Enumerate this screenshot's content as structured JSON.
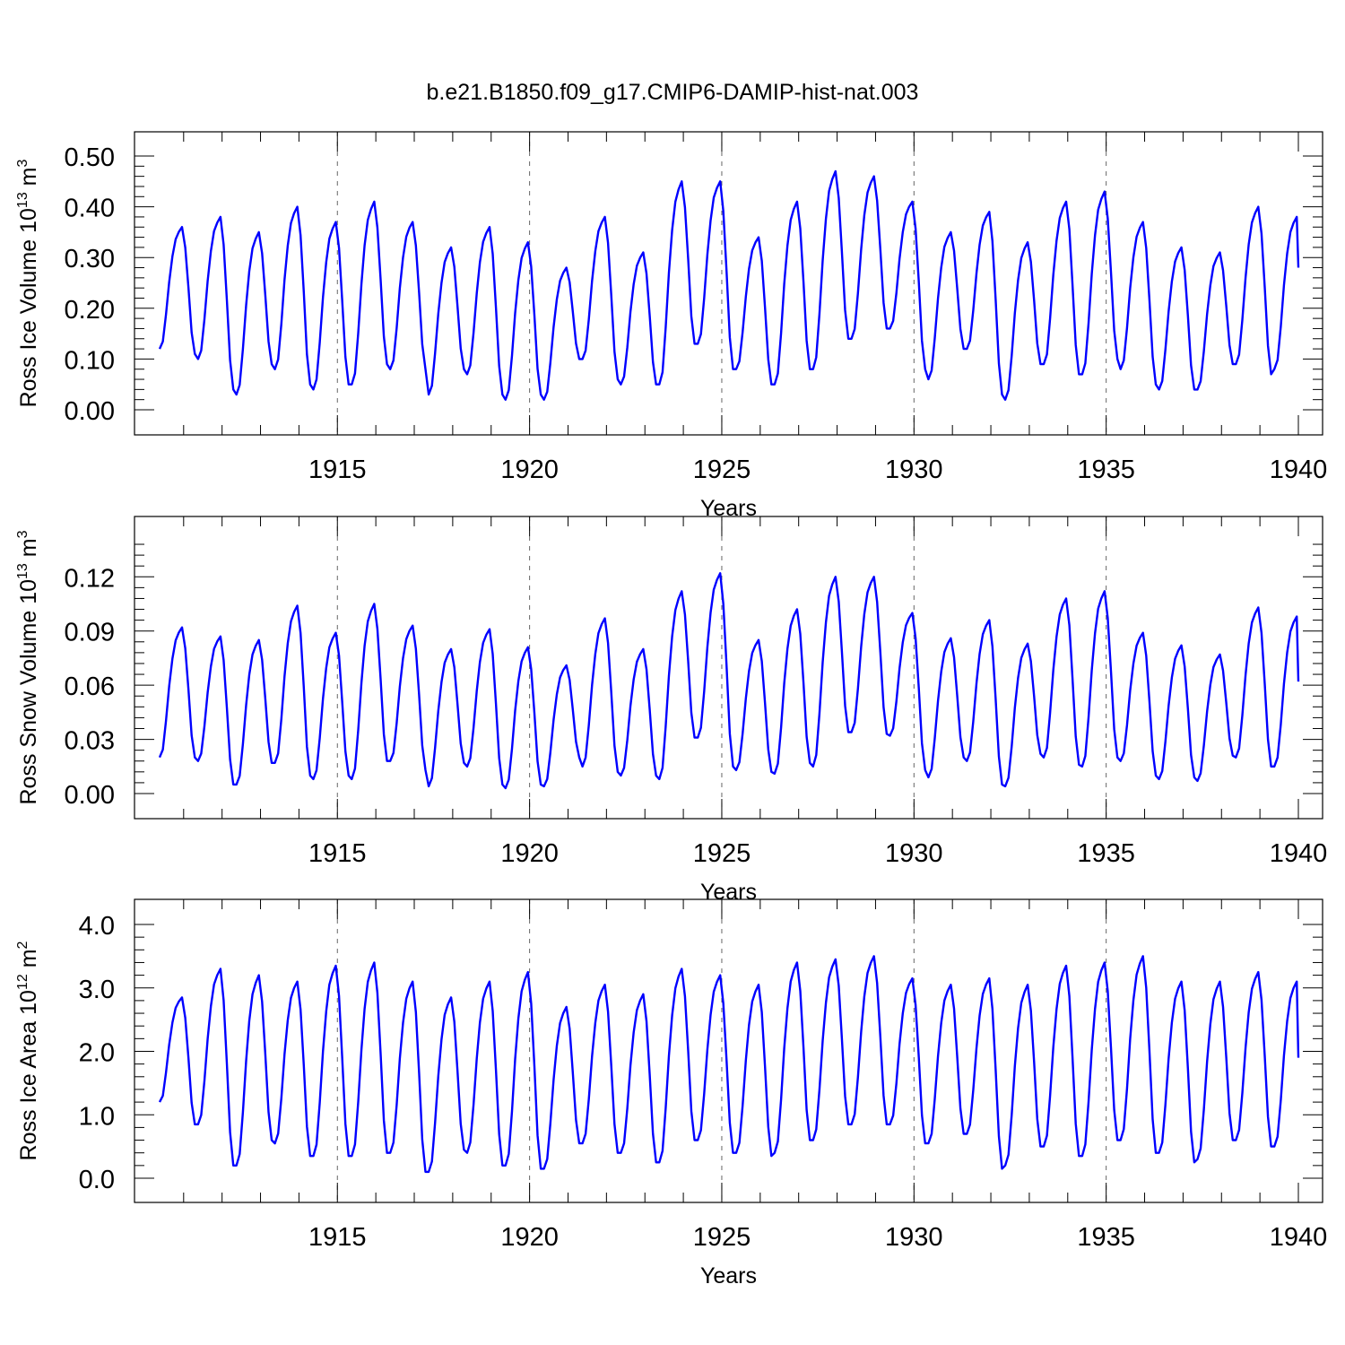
{
  "chart_data": {
    "title": "b.e21.B1850.f09_g17.CMIP6-DAMIP-hist-nat.003",
    "xlim": [
      1910.375,
      1940
    ],
    "xticks": [
      1915,
      1920,
      1925,
      1930,
      1935,
      1940
    ],
    "xlabel": "Years",
    "series_color": "#0000ff",
    "panels": [
      {
        "type": "line",
        "id": "ice-volume",
        "ylabel_main": "Ross Ice Volume 10",
        "ylabel_exp": "13",
        "ylabel_unit": " m",
        "ylabel_unit_exp": "3",
        "ylim": [
          0,
          0.5
        ],
        "yticks": [
          0.0,
          0.1,
          0.2,
          0.3,
          0.4,
          0.5
        ],
        "yticklabels": [
          "0.00",
          "0.10",
          "0.20",
          "0.30",
          "0.40",
          "0.50"
        ],
        "annual": [
          [
            0.12,
            0.36,
            0.11
          ],
          [
            0.1,
            0.38,
            0.04
          ],
          [
            0.03,
            0.35,
            0.09
          ],
          [
            0.08,
            0.4,
            0.05
          ],
          [
            0.04,
            0.37,
            0.05
          ],
          [
            0.05,
            0.41,
            0.09
          ],
          [
            0.08,
            0.37,
            0.08
          ],
          [
            0.03,
            0.32,
            0.08
          ],
          [
            0.07,
            0.36,
            0.03
          ],
          [
            0.02,
            0.33,
            0.03
          ],
          [
            0.02,
            0.28,
            0.1
          ],
          [
            0.1,
            0.38,
            0.06
          ],
          [
            0.05,
            0.31,
            0.05
          ],
          [
            0.05,
            0.45,
            0.13
          ],
          [
            0.13,
            0.45,
            0.08
          ],
          [
            0.08,
            0.34,
            0.05
          ],
          [
            0.05,
            0.41,
            0.08
          ],
          [
            0.08,
            0.47,
            0.14
          ],
          [
            0.14,
            0.46,
            0.16
          ],
          [
            0.16,
            0.41,
            0.08
          ],
          [
            0.06,
            0.35,
            0.12
          ],
          [
            0.12,
            0.39,
            0.03
          ],
          [
            0.02,
            0.33,
            0.09
          ],
          [
            0.09,
            0.41,
            0.07
          ],
          [
            0.07,
            0.43,
            0.1
          ],
          [
            0.08,
            0.37,
            0.05
          ],
          [
            0.04,
            0.32,
            0.04
          ],
          [
            0.04,
            0.31,
            0.09
          ],
          [
            0.09,
            0.4,
            0.07
          ],
          [
            0.08,
            0.38,
            0.28
          ]
        ]
      },
      {
        "type": "line",
        "id": "snow-volume",
        "ylabel_main": "Ross Snow Volume 10",
        "ylabel_exp": "13",
        "ylabel_unit": " m",
        "ylabel_unit_exp": "3",
        "ylim": [
          0,
          0.14
        ],
        "yticks": [
          0.0,
          0.03,
          0.06,
          0.09,
          0.12
        ],
        "yticklabels": [
          "0.00",
          "0.03",
          "0.06",
          "0.09",
          "0.12"
        ],
        "annual": [
          [
            0.02,
            0.092,
            0.02
          ],
          [
            0.018,
            0.087,
            0.005
          ],
          [
            0.005,
            0.085,
            0.017
          ],
          [
            0.017,
            0.104,
            0.01
          ],
          [
            0.008,
            0.089,
            0.01
          ],
          [
            0.008,
            0.105,
            0.018
          ],
          [
            0.018,
            0.093,
            0.013
          ],
          [
            0.004,
            0.08,
            0.017
          ],
          [
            0.015,
            0.091,
            0.005
          ],
          [
            0.003,
            0.081,
            0.005
          ],
          [
            0.004,
            0.071,
            0.02
          ],
          [
            0.015,
            0.097,
            0.012
          ],
          [
            0.01,
            0.08,
            0.01
          ],
          [
            0.008,
            0.112,
            0.031
          ],
          [
            0.031,
            0.122,
            0.015
          ],
          [
            0.013,
            0.085,
            0.012
          ],
          [
            0.011,
            0.102,
            0.017
          ],
          [
            0.015,
            0.12,
            0.034
          ],
          [
            0.034,
            0.12,
            0.033
          ],
          [
            0.032,
            0.1,
            0.013
          ],
          [
            0.009,
            0.086,
            0.02
          ],
          [
            0.018,
            0.096,
            0.005
          ],
          [
            0.004,
            0.083,
            0.022
          ],
          [
            0.02,
            0.108,
            0.016
          ],
          [
            0.015,
            0.112,
            0.02
          ],
          [
            0.018,
            0.089,
            0.01
          ],
          [
            0.008,
            0.082,
            0.009
          ],
          [
            0.007,
            0.077,
            0.021
          ],
          [
            0.02,
            0.103,
            0.015
          ],
          [
            0.015,
            0.098,
            0.062
          ]
        ]
      },
      {
        "type": "line",
        "id": "ice-area",
        "ylabel_main": "Ross Ice Area 10",
        "ylabel_exp": "12",
        "ylabel_unit": " m",
        "ylabel_unit_exp": "2",
        "ylim": [
          0,
          4
        ],
        "yticks": [
          0,
          1,
          2,
          3,
          4
        ],
        "yticklabels": [
          "0.0",
          "1.0",
          "2.0",
          "3.0",
          "4.0"
        ],
        "annual": [
          [
            1.2,
            2.85,
            0.85
          ],
          [
            0.85,
            3.3,
            0.2
          ],
          [
            0.2,
            3.2,
            0.6
          ],
          [
            0.55,
            3.1,
            0.35
          ],
          [
            0.35,
            3.35,
            0.35
          ],
          [
            0.35,
            3.4,
            0.4
          ],
          [
            0.4,
            3.1,
            0.1
          ],
          [
            0.1,
            2.85,
            0.45
          ],
          [
            0.4,
            3.1,
            0.2
          ],
          [
            0.2,
            3.25,
            0.15
          ],
          [
            0.15,
            2.7,
            0.55
          ],
          [
            0.55,
            3.05,
            0.4
          ],
          [
            0.4,
            2.9,
            0.25
          ],
          [
            0.25,
            3.3,
            0.6
          ],
          [
            0.6,
            3.2,
            0.4
          ],
          [
            0.4,
            3.05,
            0.35
          ],
          [
            0.4,
            3.4,
            0.6
          ],
          [
            0.6,
            3.45,
            0.85
          ],
          [
            0.85,
            3.5,
            0.85
          ],
          [
            0.85,
            3.15,
            0.55
          ],
          [
            0.55,
            3.05,
            0.7
          ],
          [
            0.7,
            3.15,
            0.15
          ],
          [
            0.2,
            3.05,
            0.5
          ],
          [
            0.5,
            3.35,
            0.35
          ],
          [
            0.35,
            3.4,
            0.6
          ],
          [
            0.6,
            3.5,
            0.4
          ],
          [
            0.4,
            3.1,
            0.25
          ],
          [
            0.3,
            3.1,
            0.6
          ],
          [
            0.6,
            3.25,
            0.5
          ],
          [
            0.5,
            3.1,
            1.9
          ]
        ]
      }
    ]
  }
}
